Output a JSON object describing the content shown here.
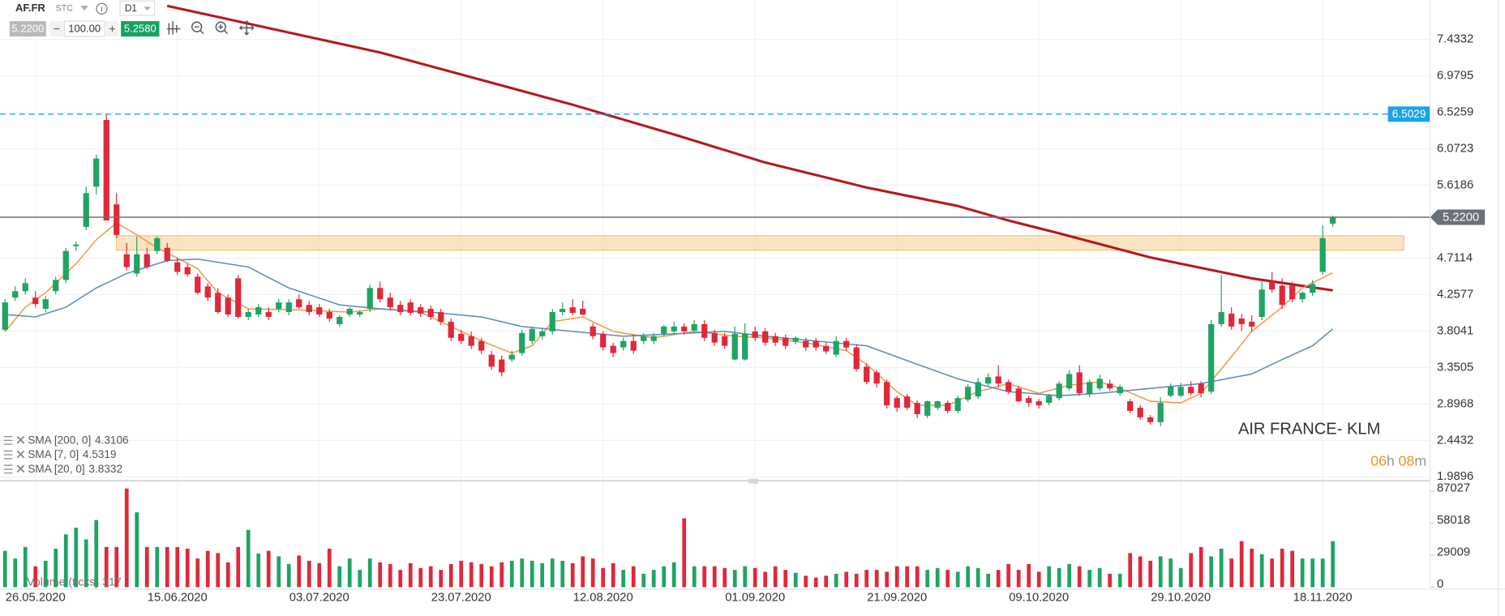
{
  "chart_data": {
    "type": "candlestick",
    "symbol": "AF.FR",
    "market": "STC",
    "timeframe": "D1",
    "bid": "5.2200",
    "volume_input": "100.00",
    "ask": "5.2580",
    "up_color": "#1fa463",
    "down_color": "#e0283a",
    "ohlc": [
      [
        3.82,
        4.2,
        3.8,
        4.16
      ],
      [
        4.22,
        4.36,
        4.18,
        4.3
      ],
      [
        4.3,
        4.46,
        4.26,
        4.4
      ],
      [
        4.22,
        4.3,
        4.1,
        4.14
      ],
      [
        4.08,
        4.24,
        4.04,
        4.2
      ],
      [
        4.3,
        4.48,
        4.26,
        4.44
      ],
      [
        4.44,
        4.84,
        4.4,
        4.8
      ],
      [
        4.86,
        4.92,
        4.8,
        4.88
      ],
      [
        5.1,
        5.6,
        5.06,
        5.52
      ],
      [
        5.6,
        6.0,
        5.5,
        5.95
      ],
      [
        6.43,
        6.5,
        5.22,
        5.18
      ],
      [
        5.38,
        5.52,
        4.96,
        5.0
      ],
      [
        4.76,
        4.9,
        4.56,
        4.6
      ],
      [
        4.52,
        4.98,
        4.48,
        4.76
      ],
      [
        4.76,
        4.84,
        4.58,
        4.6
      ],
      [
        4.8,
        4.98,
        4.76,
        4.96
      ],
      [
        4.84,
        4.9,
        4.66,
        4.68
      ],
      [
        4.66,
        4.72,
        4.5,
        4.54
      ],
      [
        4.6,
        4.64,
        4.48,
        4.51
      ],
      [
        4.48,
        4.52,
        4.26,
        4.28
      ],
      [
        4.36,
        4.4,
        4.18,
        4.22
      ],
      [
        4.28,
        4.34,
        4.02,
        4.04
      ],
      [
        4.22,
        4.26,
        3.98,
        4.01
      ],
      [
        4.46,
        4.5,
        3.96,
        3.98
      ],
      [
        3.98,
        4.08,
        3.94,
        4.04
      ],
      [
        4.01,
        4.14,
        3.98,
        4.1
      ],
      [
        4.04,
        4.1,
        3.94,
        3.98
      ],
      [
        4.08,
        4.2,
        4.04,
        4.16
      ],
      [
        4.04,
        4.2,
        4.0,
        4.16
      ],
      [
        4.2,
        4.26,
        4.08,
        4.1
      ],
      [
        4.13,
        4.18,
        4.0,
        4.04
      ],
      [
        4.1,
        4.14,
        3.98,
        4.01
      ],
      [
        4.04,
        4.08,
        3.92,
        3.96
      ],
      [
        3.89,
        4.0,
        3.86,
        3.98
      ],
      [
        4.01,
        4.1,
        3.98,
        4.08
      ],
      [
        4.01,
        4.06,
        3.98,
        4.04
      ],
      [
        4.08,
        4.38,
        4.04,
        4.34
      ],
      [
        4.34,
        4.42,
        4.16,
        4.2
      ],
      [
        4.22,
        4.28,
        4.06,
        4.1
      ],
      [
        4.13,
        4.18,
        4.0,
        4.04
      ],
      [
        4.16,
        4.2,
        4.0,
        4.03
      ],
      [
        4.1,
        4.14,
        3.98,
        4.02
      ],
      [
        4.08,
        4.12,
        3.94,
        3.98
      ],
      [
        4.04,
        4.08,
        3.88,
        3.92
      ],
      [
        3.92,
        3.96,
        3.68,
        3.72
      ],
      [
        3.77,
        3.82,
        3.64,
        3.68
      ],
      [
        3.74,
        3.8,
        3.58,
        3.62
      ],
      [
        3.68,
        3.72,
        3.52,
        3.56
      ],
      [
        3.51,
        3.56,
        3.32,
        3.36
      ],
      [
        3.45,
        3.5,
        3.24,
        3.29
      ],
      [
        3.45,
        3.56,
        3.42,
        3.51
      ],
      [
        3.53,
        3.82,
        3.5,
        3.78
      ],
      [
        3.68,
        3.86,
        3.64,
        3.83
      ],
      [
        3.74,
        3.84,
        3.7,
        3.8
      ],
      [
        3.8,
        4.08,
        3.76,
        4.04
      ],
      [
        4.04,
        4.16,
        4.0,
        4.08
      ],
      [
        4.1,
        4.2,
        4.0,
        4.03
      ],
      [
        4.08,
        4.18,
        4.0,
        4.01
      ],
      [
        3.86,
        3.9,
        3.7,
        3.74
      ],
      [
        3.77,
        3.8,
        3.56,
        3.6
      ],
      [
        3.62,
        3.66,
        3.48,
        3.53
      ],
      [
        3.6,
        3.72,
        3.56,
        3.68
      ],
      [
        3.68,
        3.76,
        3.52,
        3.56
      ],
      [
        3.68,
        3.78,
        3.64,
        3.74
      ],
      [
        3.68,
        3.78,
        3.64,
        3.74
      ],
      [
        3.77,
        3.88,
        3.74,
        3.86
      ],
      [
        3.8,
        3.92,
        3.76,
        3.86
      ],
      [
        3.86,
        3.9,
        3.76,
        3.8
      ],
      [
        3.81,
        3.94,
        3.78,
        3.89
      ],
      [
        3.89,
        3.94,
        3.68,
        3.72
      ],
      [
        3.78,
        3.82,
        3.62,
        3.66
      ],
      [
        3.74,
        3.78,
        3.58,
        3.62
      ],
      [
        3.45,
        3.86,
        3.44,
        3.77
      ],
      [
        3.45,
        3.9,
        3.44,
        3.77
      ],
      [
        3.8,
        3.86,
        3.68,
        3.72
      ],
      [
        3.8,
        3.84,
        3.62,
        3.66
      ],
      [
        3.74,
        3.78,
        3.62,
        3.66
      ],
      [
        3.72,
        3.76,
        3.58,
        3.62
      ],
      [
        3.67,
        3.74,
        3.64,
        3.72
      ],
      [
        3.68,
        3.72,
        3.56,
        3.6
      ],
      [
        3.68,
        3.72,
        3.56,
        3.6
      ],
      [
        3.62,
        3.66,
        3.52,
        3.55
      ],
      [
        3.51,
        3.74,
        3.48,
        3.68
      ],
      [
        3.68,
        3.72,
        3.56,
        3.6
      ],
      [
        3.6,
        3.64,
        3.3,
        3.33
      ],
      [
        3.36,
        3.4,
        3.14,
        3.17
      ],
      [
        3.29,
        3.32,
        3.1,
        3.15
      ],
      [
        3.17,
        3.2,
        2.84,
        2.88
      ],
      [
        2.97,
        3.0,
        2.8,
        2.85
      ],
      [
        2.99,
        3.02,
        2.82,
        2.85
      ],
      [
        2.91,
        2.94,
        2.72,
        2.77
      ],
      [
        2.75,
        2.94,
        2.72,
        2.93
      ],
      [
        2.85,
        2.94,
        2.82,
        2.93
      ],
      [
        2.91,
        2.94,
        2.78,
        2.81
      ],
      [
        2.81,
        3.0,
        2.78,
        2.97
      ],
      [
        2.95,
        3.14,
        2.92,
        3.11
      ],
      [
        2.99,
        3.22,
        2.96,
        3.17
      ],
      [
        3.15,
        3.28,
        3.12,
        3.23
      ],
      [
        3.24,
        3.38,
        3.1,
        3.15
      ],
      [
        3.17,
        3.2,
        3.02,
        3.05
      ],
      [
        3.09,
        3.12,
        2.92,
        2.93
      ],
      [
        2.97,
        3.0,
        2.86,
        2.91
      ],
      [
        2.93,
        2.96,
        2.84,
        2.88
      ],
      [
        2.91,
        3.02,
        2.88,
        3.0
      ],
      [
        2.97,
        3.18,
        2.94,
        3.15
      ],
      [
        3.09,
        3.32,
        3.06,
        3.27
      ],
      [
        3.29,
        3.38,
        3.0,
        3.03
      ],
      [
        3.02,
        3.2,
        2.98,
        3.17
      ],
      [
        3.09,
        3.26,
        3.06,
        3.21
      ],
      [
        3.15,
        3.2,
        3.06,
        3.09
      ],
      [
        3.03,
        3.14,
        3.0,
        3.11
      ],
      [
        2.93,
        2.96,
        2.78,
        2.81
      ],
      [
        2.85,
        2.88,
        2.7,
        2.73
      ],
      [
        2.73,
        2.76,
        2.64,
        2.67
      ],
      [
        2.67,
        2.98,
        2.62,
        2.91
      ],
      [
        3.0,
        3.15,
        2.98,
        3.11
      ],
      [
        3.0,
        3.16,
        2.98,
        3.11
      ],
      [
        3.11,
        3.18,
        3.0,
        3.03
      ],
      [
        3.15,
        3.18,
        2.98,
        3.03
      ],
      [
        3.05,
        3.94,
        3.02,
        3.89
      ],
      [
        3.89,
        4.5,
        3.86,
        4.04
      ],
      [
        4.02,
        4.1,
        3.82,
        3.86
      ],
      [
        3.96,
        4.02,
        3.8,
        3.89
      ],
      [
        3.92,
        4.0,
        3.8,
        3.86
      ],
      [
        3.98,
        4.42,
        3.94,
        4.32
      ],
      [
        4.42,
        4.54,
        4.28,
        4.32
      ],
      [
        4.37,
        4.46,
        4.08,
        4.13
      ],
      [
        4.37,
        4.42,
        4.16,
        4.2
      ],
      [
        4.2,
        4.3,
        4.16,
        4.28
      ],
      [
        4.28,
        4.44,
        4.24,
        4.39
      ],
      [
        4.54,
        5.12,
        4.5,
        4.96
      ],
      [
        5.14,
        5.24,
        5.1,
        5.22
      ]
    ],
    "volume": [
      33000,
      26000,
      36500,
      19000,
      24000,
      35000,
      48000,
      54000,
      43500,
      61000,
      36500,
      36500,
      89600,
      68000,
      36500,
      36500,
      36500,
      36500,
      35000,
      26000,
      33000,
      31000,
      22600,
      36500,
      52000,
      30500,
      33000,
      28000,
      21000,
      28700,
      24000,
      21800,
      35000,
      19000,
      26000,
      15700,
      26000,
      22600,
      21000,
      15700,
      21800,
      17400,
      19000,
      15700,
      21000,
      24000,
      22600,
      21000,
      19000,
      22600,
      24000,
      26000,
      24000,
      21800,
      26000,
      24000,
      21800,
      28000,
      26000,
      17400,
      21800,
      15700,
      19000,
      12200,
      15700,
      19000,
      22600,
      62600,
      19000,
      19000,
      19000,
      17400,
      15700,
      19000,
      17400,
      14000,
      19000,
      15700,
      13000,
      10400,
      8700,
      10400,
      12200,
      14000,
      12200,
      15700,
      15700,
      14000,
      19000,
      19000,
      19000,
      15700,
      17400,
      15700,
      14000,
      19000,
      17400,
      12200,
      15700,
      21000,
      15700,
      21000,
      14000,
      19000,
      17400,
      21000,
      19000,
      15700,
      17400,
      12200,
      12200,
      31000,
      28000,
      24000,
      28000,
      26000,
      17400,
      31000,
      36500,
      28000,
      35000,
      26000,
      41800,
      35000,
      30000,
      26000,
      35000,
      33000,
      26000,
      26000,
      26000,
      41800
    ],
    "volume_label": "Volume (ticks) 317",
    "xlim": [
      -0.5,
      140.6
    ],
    "xticks": [
      {
        "value": 3,
        "label": "26.05.2020"
      },
      {
        "value": 17,
        "label": "15.06.2020"
      },
      {
        "value": 31,
        "label": "03.07.2020"
      },
      {
        "value": 45,
        "label": "23.07.2020"
      },
      {
        "value": 59,
        "label": "12.08.2020"
      },
      {
        "value": 74,
        "label": "01.09.2020"
      },
      {
        "value": 88,
        "label": "21.09.2020"
      },
      {
        "value": 102,
        "label": "09.10.2020"
      },
      {
        "value": 116,
        "label": "29.10.2020"
      },
      {
        "value": 130,
        "label": "18.11.2020"
      }
    ],
    "ylim": [
      1.954,
      7.9226
    ],
    "yticks": [
      7.4332,
      6.9795,
      6.5259,
      6.0723,
      5.6186,
      4.7114,
      4.2577,
      3.8041,
      3.3505,
      2.8968,
      2.4432,
      1.9896
    ],
    "vlim": [
      0,
      95000
    ],
    "vticks": [
      0,
      29009,
      58018,
      87027
    ],
    "grid": true,
    "indicators": [
      {
        "name": "SMA [200, 0]",
        "last": 4.3106,
        "color": "#b3191e",
        "width": 2.6,
        "x": [
          16,
          37,
          56,
          66,
          75,
          85,
          94,
          99,
          104,
          113,
          123,
          131
        ],
        "values": [
          7.85,
          7.27,
          6.62,
          6.25,
          5.9,
          5.59,
          5.36,
          5.18,
          5.02,
          4.72,
          4.46,
          4.31
        ]
      },
      {
        "name": "SMA [7, 0]",
        "last": 4.5319,
        "color": "#f39a4a",
        "width": 1.3,
        "x": [
          0,
          2,
          4,
          7,
          9,
          11,
          13,
          15,
          19,
          21,
          24,
          28,
          34,
          37,
          41,
          44,
          47,
          50,
          52,
          54,
          57,
          60,
          64,
          68,
          72,
          75,
          79,
          83,
          85,
          88,
          90,
          93,
          96,
          99,
          102,
          105,
          108,
          110,
          113,
          116,
          118,
          120,
          123,
          126,
          128,
          131
        ],
        "values": [
          3.8,
          4.1,
          4.28,
          4.64,
          4.94,
          5.15,
          5.0,
          4.84,
          4.58,
          4.28,
          4.08,
          4.07,
          4.04,
          4.08,
          4.04,
          3.86,
          3.68,
          3.53,
          3.62,
          3.92,
          3.98,
          3.8,
          3.72,
          3.8,
          3.74,
          3.72,
          3.66,
          3.56,
          3.39,
          3.05,
          2.88,
          2.88,
          3.05,
          3.15,
          3.03,
          3.13,
          3.17,
          3.09,
          2.93,
          2.91,
          3.03,
          3.33,
          3.8,
          4.1,
          4.34,
          4.53
        ]
      },
      {
        "name": "SMA [20, 0]",
        "last": 3.8332,
        "color": "#5b8fb9",
        "width": 1.3,
        "x": [
          0,
          3,
          6,
          9,
          12,
          16,
          19,
          24,
          28,
          33,
          37,
          42,
          47,
          51,
          56,
          61,
          66,
          71,
          75,
          80,
          85,
          90,
          94,
          99,
          104,
          108,
          113,
          118,
          123,
          126,
          129,
          131
        ],
        "values": [
          4.01,
          3.98,
          4.1,
          4.34,
          4.52,
          4.68,
          4.7,
          4.6,
          4.34,
          4.13,
          4.08,
          4.04,
          3.98,
          3.86,
          3.8,
          3.74,
          3.77,
          3.8,
          3.74,
          3.68,
          3.62,
          3.39,
          3.21,
          3.05,
          3.0,
          3.03,
          3.09,
          3.15,
          3.27,
          3.45,
          3.62,
          3.83
        ]
      }
    ],
    "levels": [
      {
        "value": 6.5029,
        "color": "#1aa3e8",
        "dashed": true
      },
      {
        "value": {
          "value": 5.22,
          "label": "5.2200"
        },
        "color": "#6b7178",
        "dashed": false
      }
    ],
    "zone": {
      "from": 4.81,
      "to": 4.99,
      "start": 11,
      "end": 138,
      "color": "#fbd9a8"
    },
    "annotation": "AIR FRANCE- KLM",
    "timer": {
      "hours": "06",
      "h": "h",
      "minutes": "08",
      "m": "m"
    }
  }
}
